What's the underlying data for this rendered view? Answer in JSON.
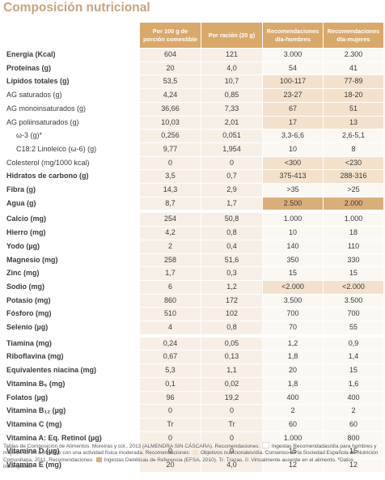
{
  "title": "Composición nutricional",
  "columns": [
    "Por 100 g de porción comestible",
    "Por ración (20 g)",
    "Recomendaciones día-hombres",
    "Recomendaciones día-mujeres"
  ],
  "rows": [
    {
      "label": "Energía (Kcal)",
      "bold": true,
      "v": [
        "604",
        "121",
        "3.000",
        "2.300"
      ]
    },
    {
      "label": "Proteínas (g)",
      "bold": true,
      "v": [
        "20",
        "4,0",
        "54",
        "41"
      ]
    },
    {
      "label": "Lípidos totales (g)",
      "bold": true,
      "v": [
        "53,5",
        "10,7",
        "100-117",
        "77-89"
      ],
      "hl": [
        2,
        3
      ]
    },
    {
      "label": "AG saturados (g)",
      "v": [
        "4,24",
        "0,85",
        "23-27",
        "18-20"
      ],
      "hl": [
        2,
        3
      ]
    },
    {
      "label": "AG monoinsaturados (g)",
      "v": [
        "36,66",
        "7,33",
        "67",
        "51"
      ],
      "hl": [
        2,
        3
      ]
    },
    {
      "label": "AG poliinsaturados (g)",
      "v": [
        "10,03",
        "2,01",
        "17",
        "13"
      ],
      "hl": [
        2,
        3
      ]
    },
    {
      "label": "ω-3 (g)*",
      "indent": true,
      "v": [
        "0,256",
        "0,051",
        "3,3-6,6",
        "2,6-5,1"
      ]
    },
    {
      "label": "C18:2 Linoleico (ω-6) (g)",
      "indent": true,
      "v": [
        "9,77",
        "1,954",
        "10",
        "8"
      ]
    },
    {
      "label": "Colesterol (mg/1000 kcal)",
      "v": [
        "0",
        "0",
        "<300",
        "<230"
      ],
      "hl": [
        2,
        3
      ]
    },
    {
      "label": "Hidratos de carbono (g)",
      "bold": true,
      "v": [
        "3,5",
        "0,7",
        "375-413",
        "288-316"
      ],
      "hl": [
        2,
        3
      ]
    },
    {
      "label": "Fibra (g)",
      "bold": true,
      "v": [
        "14,3",
        "2,9",
        ">35",
        ">25"
      ]
    },
    {
      "label": "Agua (g)",
      "bold": true,
      "v": [
        "8,7",
        "1,7",
        "2.500",
        "2.000"
      ],
      "dk": [
        2,
        3
      ]
    },
    {
      "label": "Calcio (mg)",
      "bold": true,
      "gap": true,
      "v": [
        "254",
        "50,8",
        "1.000",
        "1.000"
      ]
    },
    {
      "label": "Hierro (mg)",
      "bold": true,
      "v": [
        "4,2",
        "0,8",
        "10",
        "18"
      ]
    },
    {
      "label": "Yodo (µg)",
      "bold": true,
      "v": [
        "2",
        "0,4",
        "140",
        "110"
      ]
    },
    {
      "label": "Magnesio (mg)",
      "bold": true,
      "v": [
        "258",
        "51,6",
        "350",
        "330"
      ]
    },
    {
      "label": "Zinc (mg)",
      "bold": true,
      "v": [
        "1,7",
        "0,3",
        "15",
        "15"
      ]
    },
    {
      "label": "Sodio (mg)",
      "bold": true,
      "v": [
        "6",
        "1,2",
        "<2.000",
        "<2.000"
      ],
      "hl": [
        2,
        3
      ]
    },
    {
      "label": "Potasio (mg)",
      "bold": true,
      "v": [
        "860",
        "172",
        "3.500",
        "3.500"
      ]
    },
    {
      "label": "Fósforo (mg)",
      "bold": true,
      "v": [
        "510",
        "102",
        "700",
        "700"
      ]
    },
    {
      "label": "Selenio (µg)",
      "bold": true,
      "v": [
        "4",
        "0,8",
        "70",
        "55"
      ]
    },
    {
      "label": "Tiamina (mg)",
      "bold": true,
      "gap": true,
      "v": [
        "0,24",
        "0,05",
        "1,2",
        "0,9"
      ]
    },
    {
      "label": "Riboflavina (mg)",
      "bold": true,
      "v": [
        "0,67",
        "0,13",
        "1,8",
        "1,4"
      ]
    },
    {
      "label": "Equivalentes niacina (mg)",
      "bold": true,
      "v": [
        "5,3",
        "1,1",
        "20",
        "15"
      ]
    },
    {
      "label": "Vitamina B₆ (mg)",
      "bold": true,
      "v": [
        "0,1",
        "0,02",
        "1,8",
        "1,6"
      ]
    },
    {
      "label": "Folatos (µg)",
      "bold": true,
      "v": [
        "96",
        "19,2",
        "400",
        "400"
      ]
    },
    {
      "label": "Vitamina B₁₂ (µg)",
      "bold": true,
      "v": [
        "0",
        "0",
        "2",
        "2"
      ]
    },
    {
      "label": "Vitamina C (mg)",
      "bold": true,
      "v": [
        "Tr",
        "Tr",
        "60",
        "60"
      ]
    },
    {
      "label": "Vitamina A: Eq. Retinol (µg)",
      "bold": true,
      "v": [
        "0",
        "0",
        "1.000",
        "800"
      ]
    },
    {
      "label": "Vitamina D (µg)",
      "bold": true,
      "v": [
        "0",
        "0",
        "15",
        "15"
      ]
    },
    {
      "label": "Vitamina E (mg)",
      "bold": true,
      "v": [
        "20",
        "4,0",
        "12",
        "12"
      ]
    }
  ],
  "footnote": {
    "part1": "Tablas de Composición de Alimentos. Moreiras y col., 2013 (ALMENDRA SIN CÁSCARA). Recomendaciones:",
    "part2": "Ingestas Recomendadas/día para hombres y mujeres de 20 a 39 años con una actividad física moderada. Recomendaciones:",
    "part3": "Objetivos nutricionales/día. Consenso de la Sociedad Española de Nutrición Comunitaria, 2011. Recomendaciones:",
    "part4": "Ingestas Dietéticas de Referencia (EFSA, 2010). Tr: Trazas. 0: Virtualmente ausente en el alimento. *Datos incompletos."
  },
  "colors": {
    "header": "#d9a86b",
    "title": "#c8a27e",
    "light_hl": "#f3e1cc",
    "dark_hl": "#d9ae7b"
  }
}
